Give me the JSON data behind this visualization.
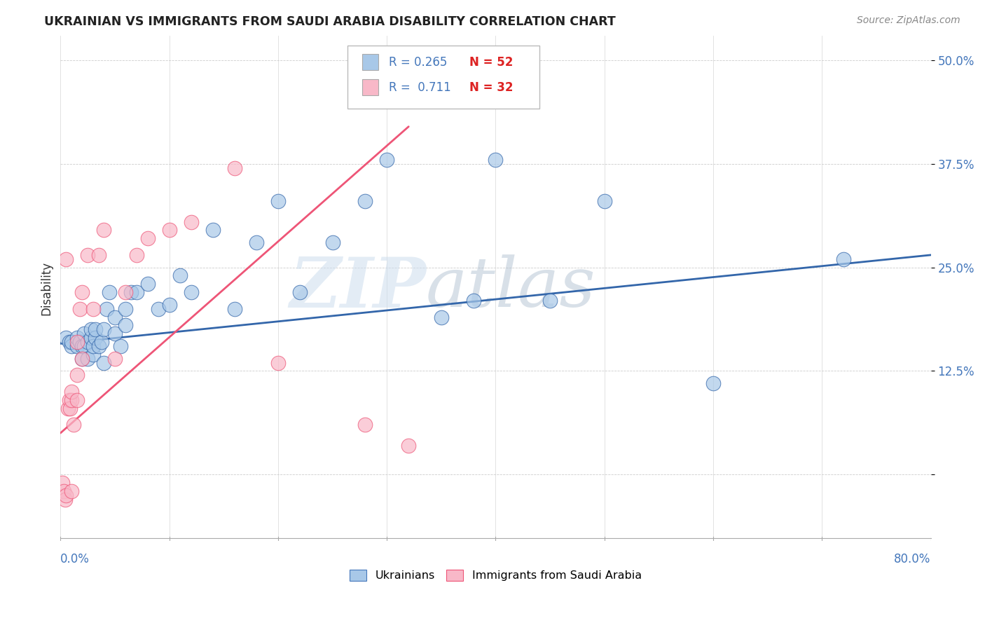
{
  "title": "UKRAINIAN VS IMMIGRANTS FROM SAUDI ARABIA DISABILITY CORRELATION CHART",
  "source": "Source: ZipAtlas.com",
  "ylabel": "Disability",
  "yticks": [
    0.0,
    0.125,
    0.25,
    0.375,
    0.5
  ],
  "ytick_labels": [
    "",
    "12.5%",
    "25.0%",
    "37.5%",
    "50.0%"
  ],
  "xmin": 0.0,
  "xmax": 0.8,
  "ymin": -0.08,
  "ymax": 0.53,
  "legend_r1": "R = 0.265",
  "legend_n1": "N = 52",
  "legend_r2": "R =  0.711",
  "legend_n2": "N = 32",
  "blue_color": "#A8C8E8",
  "pink_color": "#F8B8C8",
  "blue_line_color": "#3366AA",
  "pink_line_color": "#EE5577",
  "watermark_zip": "ZIP",
  "watermark_atlas": "atlas",
  "ukrainians_x": [
    0.005,
    0.008,
    0.01,
    0.01,
    0.015,
    0.015,
    0.018,
    0.02,
    0.02,
    0.022,
    0.022,
    0.025,
    0.025,
    0.028,
    0.028,
    0.03,
    0.03,
    0.032,
    0.032,
    0.035,
    0.038,
    0.04,
    0.04,
    0.042,
    0.045,
    0.05,
    0.05,
    0.055,
    0.06,
    0.06,
    0.065,
    0.07,
    0.08,
    0.09,
    0.1,
    0.11,
    0.12,
    0.14,
    0.16,
    0.18,
    0.2,
    0.22,
    0.25,
    0.28,
    0.3,
    0.35,
    0.38,
    0.4,
    0.45,
    0.5,
    0.6,
    0.72
  ],
  "ukrainians_y": [
    0.165,
    0.16,
    0.155,
    0.16,
    0.155,
    0.165,
    0.16,
    0.14,
    0.155,
    0.155,
    0.17,
    0.14,
    0.16,
    0.165,
    0.175,
    0.145,
    0.155,
    0.165,
    0.175,
    0.155,
    0.16,
    0.135,
    0.175,
    0.2,
    0.22,
    0.17,
    0.19,
    0.155,
    0.18,
    0.2,
    0.22,
    0.22,
    0.23,
    0.2,
    0.205,
    0.24,
    0.22,
    0.295,
    0.2,
    0.28,
    0.33,
    0.22,
    0.28,
    0.33,
    0.38,
    0.19,
    0.21,
    0.38,
    0.21,
    0.33,
    0.11,
    0.26
  ],
  "saudi_x": [
    0.002,
    0.003,
    0.004,
    0.005,
    0.005,
    0.007,
    0.008,
    0.009,
    0.01,
    0.01,
    0.01,
    0.012,
    0.015,
    0.015,
    0.015,
    0.018,
    0.02,
    0.02,
    0.025,
    0.03,
    0.035,
    0.04,
    0.05,
    0.06,
    0.07,
    0.08,
    0.1,
    0.12,
    0.16,
    0.2,
    0.28,
    0.32
  ],
  "saudi_y": [
    -0.01,
    -0.02,
    -0.03,
    -0.025,
    0.26,
    0.08,
    0.09,
    0.08,
    0.09,
    0.1,
    -0.02,
    0.06,
    0.09,
    0.12,
    0.16,
    0.2,
    0.14,
    0.22,
    0.265,
    0.2,
    0.265,
    0.295,
    0.14,
    0.22,
    0.265,
    0.285,
    0.295,
    0.305,
    0.37,
    0.135,
    0.06,
    0.035
  ],
  "blue_trend_x": [
    0.0,
    0.8
  ],
  "blue_trend_y": [
    0.158,
    0.265
  ],
  "pink_trend_x": [
    0.0,
    0.32
  ],
  "pink_trend_y": [
    0.05,
    0.42
  ],
  "bottom_legend_ukrainians": "Ukrainians",
  "bottom_legend_saudi": "Immigrants from Saudi Arabia"
}
